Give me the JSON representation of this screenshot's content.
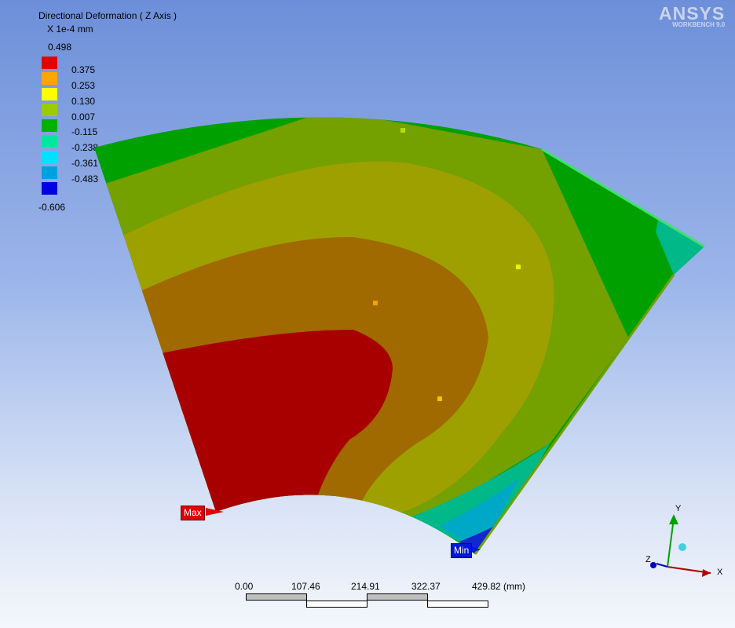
{
  "legend": {
    "title": "Directional Deformation ( Z Axis )",
    "unit": "X 1e-4 mm",
    "max_value": "0.498",
    "min_value": "-0.606",
    "levels": [
      {
        "label": "0.375",
        "color": "#e00000"
      },
      {
        "label": "0.253",
        "color": "#ffa500"
      },
      {
        "label": "0.130",
        "color": "#ffff00"
      },
      {
        "label": "0.007",
        "color": "#9ccc00"
      },
      {
        "label": "-0.115",
        "color": "#00b000"
      },
      {
        "label": "-0.238",
        "color": "#00e8a0"
      },
      {
        "label": "-0.361",
        "color": "#00e0ff"
      },
      {
        "label": "-0.483",
        "color": "#00a0e0"
      },
      {
        "label": "",
        "color": "#0000e0"
      }
    ]
  },
  "logo": {
    "main": "ANSYS",
    "sub": "WORKBENCH 9.0"
  },
  "markers": {
    "max": "Max",
    "min": "Min"
  },
  "scale_bar": {
    "ticks": [
      "0.00",
      "107.46",
      "214.91",
      "322.37",
      "429.82 (mm)"
    ]
  },
  "axes": {
    "x": "X",
    "y": "Y",
    "z": "Z"
  },
  "contour_colors": {
    "red": "#a80000",
    "dark_orange": "#a06a00",
    "olive": "#9ea000",
    "yellow_green": "#74a000",
    "green": "#00a000",
    "teal": "#00b888",
    "cyan": "#00a8c8",
    "blue": "#1028d0"
  }
}
